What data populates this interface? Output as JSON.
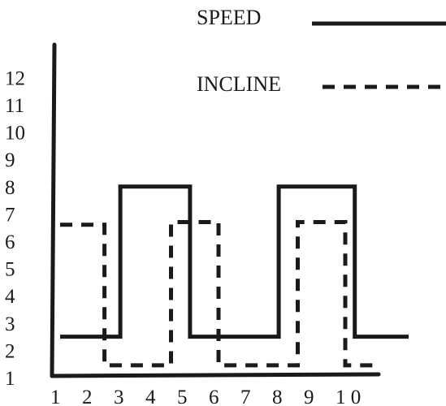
{
  "chart_data": {
    "type": "line",
    "step": true,
    "x_ticks": [
      "1",
      "2",
      "3",
      "4",
      "5",
      "6",
      "7",
      "8",
      "9",
      "1 0"
    ],
    "y_ticks": [
      "1",
      "2",
      "3",
      "4",
      "5",
      "6",
      "7",
      "8",
      "9",
      "10",
      "11",
      "12"
    ],
    "ylim": [
      1,
      12
    ],
    "series": [
      {
        "name": "SPEED",
        "style": "solid",
        "color": "#1a1a1a",
        "points": [
          [
            1,
            2.5
          ],
          [
            2.9,
            2.5
          ],
          [
            2.9,
            8
          ],
          [
            5.1,
            8
          ],
          [
            5.1,
            2.5
          ],
          [
            7.9,
            2.5
          ],
          [
            7.9,
            8
          ],
          [
            10.3,
            8
          ],
          [
            10.3,
            2.5
          ],
          [
            12.0,
            2.5
          ]
        ]
      },
      {
        "name": "INCLINE",
        "style": "dashed",
        "color": "#1a1a1a",
        "points": [
          [
            1.0,
            6.6
          ],
          [
            2.4,
            6.6
          ],
          [
            2.4,
            1.45
          ],
          [
            4.5,
            1.45
          ],
          [
            4.5,
            6.7
          ],
          [
            6.0,
            6.7
          ],
          [
            6.0,
            1.45
          ],
          [
            8.5,
            1.45
          ],
          [
            8.5,
            6.7
          ],
          [
            10.0,
            6.7
          ],
          [
            10.0,
            1.45
          ],
          [
            11.0,
            1.45
          ]
        ]
      }
    ],
    "legend": [
      "SPEED",
      "INCLINE"
    ],
    "legend_placement": "top-right",
    "grid": false
  }
}
